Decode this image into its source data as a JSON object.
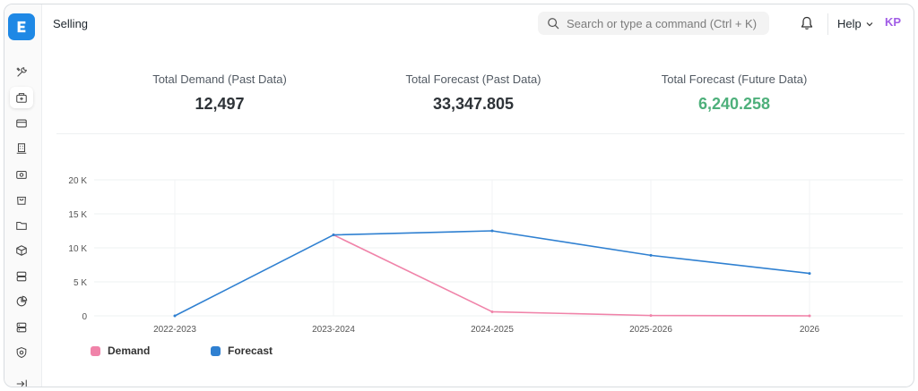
{
  "header": {
    "title": "Selling",
    "search_placeholder": "Search or type a command (Ctrl + K)",
    "help_label": "Help",
    "avatar_initials": "KP"
  },
  "sidebar": {
    "icons": [
      "tools-icon",
      "selling-box-icon",
      "card-icon",
      "building-icon",
      "money-icon",
      "shopping-bag-icon",
      "folder-icon",
      "cube-icon",
      "server-icon",
      "pie-chart-icon",
      "database-icon",
      "shield-icon",
      "collapse-sidebar-icon"
    ],
    "active_index": 1
  },
  "stats": [
    {
      "label": "Total Demand (Past Data)",
      "value": "12,497"
    },
    {
      "label": "Total Forecast (Past Data)",
      "value": "33,347.805"
    },
    {
      "label": "Total Forecast (Future Data)",
      "value": "6,240.258"
    }
  ],
  "colors": {
    "accent": "#1e88e5",
    "demand": "#f083a9",
    "forecast": "#2f80d1",
    "future_value": "#4eb07b"
  },
  "chart_data": {
    "type": "line",
    "categories": [
      "2022-2023",
      "2023-2024",
      "2024-2025",
      "2025-2026",
      "2026"
    ],
    "y_ticks": [
      "0",
      "5 K",
      "10 K",
      "15 K",
      "20 K"
    ],
    "ylim": [
      0,
      20000
    ],
    "grid": true,
    "legend_position": "bottom-left",
    "series": [
      {
        "name": "Demand",
        "values": [
          null,
          11900,
          600,
          50,
          0
        ]
      },
      {
        "name": "Forecast",
        "values": [
          0,
          11900,
          12500,
          8900,
          6240
        ]
      }
    ]
  }
}
